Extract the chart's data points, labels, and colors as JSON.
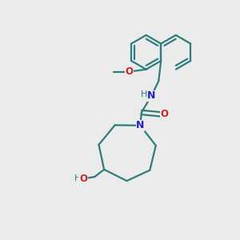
{
  "bg_color": "#ebebeb",
  "bond_color": "#2e7d7d",
  "n_color": "#2222cc",
  "o_color": "#cc2222",
  "lw": 1.6,
  "fig_size": [
    3.0,
    3.0
  ],
  "dpi": 100,
  "xlim": [
    0,
    10
  ],
  "ylim": [
    0,
    10
  ]
}
